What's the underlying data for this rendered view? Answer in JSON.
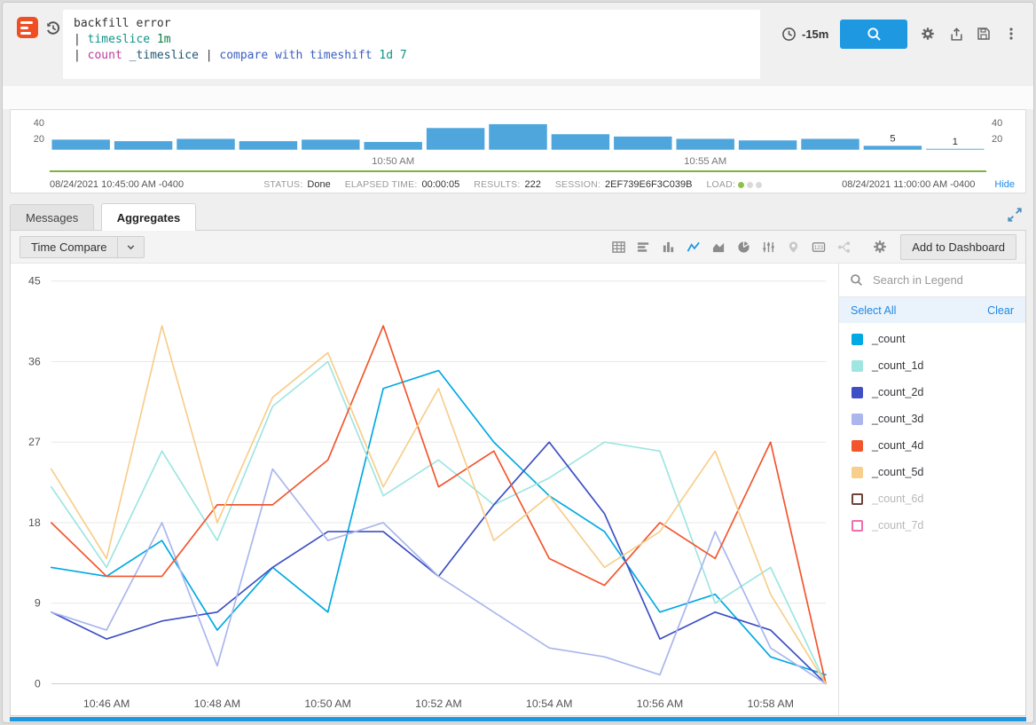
{
  "query_bar": {
    "lines": [
      {
        "segments": [
          {
            "text": "backfill error",
            "color": "#333333"
          }
        ]
      },
      {
        "segments": [
          {
            "text": "| ",
            "color": "#333333"
          },
          {
            "text": "timeslice ",
            "color": "#0D9488"
          },
          {
            "text": "1m",
            "color": "#0B8043"
          }
        ]
      },
      {
        "segments": [
          {
            "text": "| ",
            "color": "#333333"
          },
          {
            "text": "count",
            "color": "#C0399F"
          },
          {
            "text": " _timeslice ",
            "color": "#1F5673"
          },
          {
            "text": "| ",
            "color": "#333333"
          },
          {
            "text": "compare with timeshift ",
            "color": "#3B5FC0"
          },
          {
            "text": "1d 7",
            "color": "#0D9488"
          }
        ]
      }
    ],
    "time_range": "-15m"
  },
  "histogram_panel": {
    "left_axis": [
      "40",
      "20"
    ],
    "right_axis": [
      "40",
      "20"
    ],
    "start_time": "08/24/2021 10:45:00 AM -0400",
    "end_time": "08/24/2021 11:00:00 AM -0400",
    "hide_label": "Hide",
    "status_items": [
      {
        "label": "STATUS:",
        "value": "Done"
      },
      {
        "label": "ELAPSED TIME:",
        "value": "00:00:05"
      },
      {
        "label": "RESULTS:",
        "value": "222"
      },
      {
        "label": "SESSION:",
        "value": "2EF739E6F3C039B"
      },
      {
        "label": "LOAD:",
        "value": "",
        "dots": [
          "#8BC34A",
          "#DADADA",
          "#DADADA"
        ]
      }
    ]
  },
  "tabs": {
    "items": [
      {
        "label": "Messages",
        "active": false
      },
      {
        "label": "Aggregates",
        "active": true
      }
    ]
  },
  "toolbar": {
    "time_compare_label": "Time Compare",
    "add_to_dashboard_label": "Add to Dashboard",
    "chart_types": [
      {
        "name": "table-chart",
        "icon": "table",
        "active": false,
        "muted": false
      },
      {
        "name": "bar-chart-horizontal",
        "icon": "bars-horizontal",
        "active": false,
        "muted": false
      },
      {
        "name": "column-chart",
        "icon": "columns",
        "active": false,
        "muted": false
      },
      {
        "name": "line-chart",
        "icon": "line",
        "active": true,
        "muted": false
      },
      {
        "name": "area-chart",
        "icon": "area",
        "active": false,
        "muted": false
      },
      {
        "name": "pie-chart",
        "icon": "pie",
        "active": false,
        "muted": false
      },
      {
        "name": "box-plot-chart",
        "icon": "box-plot",
        "active": false,
        "muted": false
      },
      {
        "name": "map-chart",
        "icon": "map",
        "active": false,
        "muted": true
      },
      {
        "name": "single-value-chart",
        "icon": "numeric",
        "active": false,
        "muted": false
      },
      {
        "name": "flow-diagram",
        "icon": "flow",
        "active": false,
        "muted": true
      },
      {
        "name": "chart-settings",
        "icon": "gear",
        "active": false,
        "muted": false,
        "gap_before": true
      }
    ],
    "accent_color": "#1F98E2"
  },
  "legend": {
    "search_placeholder": "Search in Legend",
    "select_all_label": "Select All",
    "clear_label": "Clear"
  },
  "chart_data": [
    {
      "type": "bar",
      "name": "search-histogram",
      "title": "",
      "bar_color": "#4EA6DC",
      "ylim": [
        0,
        40
      ],
      "y_ticks": [
        20,
        40
      ],
      "categories": [
        "10:45 AM",
        "10:46 AM",
        "10:47 AM",
        "10:48 AM",
        "10:49 AM",
        "10:50 AM",
        "10:51 AM",
        "10:52 AM",
        "10:53 AM",
        "10:54 AM",
        "10:55 AM",
        "10:56 AM",
        "10:57 AM",
        "10:58 AM",
        "10:59 AM"
      ],
      "values": [
        13,
        11,
        14,
        11,
        13,
        10,
        28,
        33,
        20,
        17,
        14,
        12,
        14,
        5,
        1
      ],
      "bar_labels": [
        null,
        null,
        null,
        null,
        null,
        null,
        null,
        null,
        null,
        null,
        null,
        null,
        null,
        "5",
        "1"
      ],
      "x_tick_indices": [
        5,
        10
      ]
    },
    {
      "type": "line",
      "name": "aggregates-chart",
      "title": "",
      "xlabel": "",
      "ylabel": "",
      "ylim": [
        0,
        45
      ],
      "y_ticks": [
        0,
        9,
        18,
        27,
        36,
        45
      ],
      "grid": true,
      "legend_position": "right",
      "categories": [
        "10:45 AM",
        "10:46 AM",
        "10:47 AM",
        "10:48 AM",
        "10:49 AM",
        "10:50 AM",
        "10:51 AM",
        "10:52 AM",
        "10:53 AM",
        "10:54 AM",
        "10:55 AM",
        "10:56 AM",
        "10:57 AM",
        "10:58 AM",
        "10:59 AM"
      ],
      "x_tick_indices": [
        1,
        3,
        5,
        7,
        9,
        11,
        13
      ],
      "series": [
        {
          "name": "_count",
          "color": "#00A9E2",
          "enabled": true,
          "values": [
            13,
            12,
            16,
            6,
            13,
            8,
            33,
            35,
            27,
            21,
            17,
            8,
            10,
            3,
            1
          ]
        },
        {
          "name": "_count_1d",
          "color": "#9FE5E2",
          "enabled": true,
          "values": [
            22,
            13,
            26,
            16,
            31,
            36,
            21,
            25,
            20,
            23,
            27,
            26,
            9,
            13,
            0
          ]
        },
        {
          "name": "_count_2d",
          "color": "#3D4FC4",
          "enabled": true,
          "values": [
            8,
            5,
            7,
            8,
            13,
            17,
            17,
            12,
            20,
            27,
            19,
            5,
            8,
            6,
            0
          ]
        },
        {
          "name": "_count_3d",
          "color": "#AAB6EC",
          "enabled": true,
          "values": [
            8,
            6,
            18,
            2,
            24,
            16,
            18,
            12,
            8,
            4,
            3,
            1,
            17,
            4,
            0
          ]
        },
        {
          "name": "_count_4d",
          "color": "#F2552C",
          "enabled": true,
          "values": [
            18,
            12,
            12,
            20,
            20,
            25,
            40,
            22,
            26,
            14,
            11,
            18,
            14,
            27,
            0
          ]
        },
        {
          "name": "_count_5d",
          "color": "#F7CE8C",
          "enabled": true,
          "values": [
            24,
            14,
            40,
            18,
            32,
            37,
            22,
            33,
            16,
            21,
            13,
            17,
            26,
            10,
            0
          ]
        },
        {
          "name": "_count_6d",
          "color": "#6E4238",
          "enabled": false,
          "values": []
        },
        {
          "name": "_count_7d",
          "color": "#F06EA9",
          "enabled": false,
          "values": []
        }
      ]
    }
  ]
}
